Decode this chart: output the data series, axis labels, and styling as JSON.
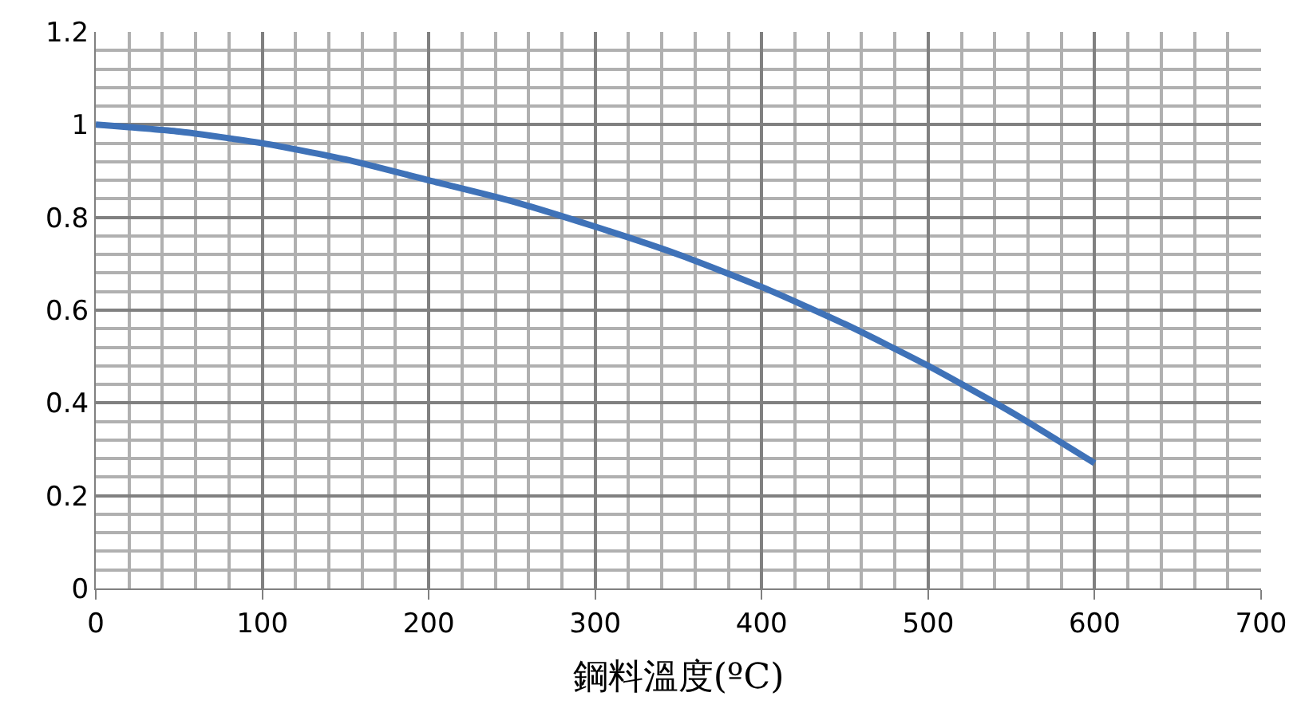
{
  "chart_data": {
    "type": "line",
    "xlabel": "鋼料溫度(ºC)",
    "x": [
      0,
      50,
      100,
      150,
      200,
      250,
      300,
      350,
      400,
      450,
      500,
      550,
      600
    ],
    "series": [
      {
        "color": "#3f72b8",
        "values": [
          1.0,
          0.985,
          0.96,
          0.925,
          0.88,
          0.835,
          0.78,
          0.72,
          0.65,
          0.57,
          0.48,
          0.38,
          0.27
        ]
      }
    ],
    "xlim": [
      0,
      700
    ],
    "xticks": [
      0,
      100,
      200,
      300,
      400,
      500,
      600,
      700
    ],
    "ylim": [
      0,
      1.2
    ],
    "yticks": [
      0,
      0.2,
      0.4,
      0.6,
      0.8,
      1,
      1.2
    ],
    "grid": true,
    "marker": "none",
    "line_style": "solid"
  }
}
